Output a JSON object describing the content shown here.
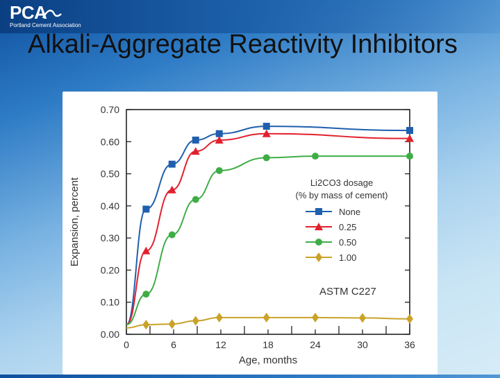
{
  "header": {
    "logo_text": "PCA",
    "logo_subtitle": "Portland Cement Association"
  },
  "slide": {
    "title": "Alkali-Aggregate Reactivity Inhibitors"
  },
  "colors": {
    "series_none": "#1f5fad",
    "series_025": "#e2202d",
    "series_050": "#3fad46",
    "series_100": "#c9a229",
    "axis": "#222222"
  },
  "chart_data": {
    "type": "line",
    "title": "",
    "xlabel": "Age, months",
    "ylabel": "Expansion, percent",
    "xlim": [
      0,
      36
    ],
    "ylim": [
      0,
      0.7
    ],
    "x_ticks": [
      0,
      6,
      12,
      18,
      24,
      30,
      36
    ],
    "x_tick_labels": [
      "0",
      "6",
      "12",
      "18",
      "24",
      "30",
      "36"
    ],
    "y_ticks": [
      0,
      0.1,
      0.2,
      0.3,
      0.4,
      0.5,
      0.6,
      0.7
    ],
    "y_tick_labels": [
      "0.00",
      "0.10",
      "0.20",
      "0.30",
      "0.40",
      "0.50",
      "0.60",
      "0.70"
    ],
    "legend_title_line1": "Li2CO3 dosage",
    "legend_title_line2": "(% by mass of cement)",
    "legend_position": "right",
    "annotation": "ASTM C227",
    "series": [
      {
        "name": "None",
        "color": "#1f5fad",
        "marker": "square",
        "x": [
          0,
          2.5,
          5.8,
          8.8,
          11.8,
          17.8,
          36
        ],
        "y": [
          0.03,
          0.39,
          0.53,
          0.605,
          0.625,
          0.648,
          0.635
        ]
      },
      {
        "name": "0.25",
        "color": "#e2202d",
        "marker": "triangle",
        "x": [
          0,
          2.5,
          5.8,
          8.8,
          11.8,
          17.8,
          36
        ],
        "y": [
          0.03,
          0.26,
          0.45,
          0.57,
          0.605,
          0.625,
          0.61
        ]
      },
      {
        "name": "0.50",
        "color": "#3fad46",
        "marker": "circle",
        "x": [
          0,
          2.5,
          5.8,
          8.8,
          11.8,
          17.8,
          24,
          36
        ],
        "y": [
          0.03,
          0.125,
          0.31,
          0.42,
          0.51,
          0.55,
          0.555,
          0.555
        ]
      },
      {
        "name": "1.00",
        "color": "#c9a229",
        "marker": "diamond",
        "x": [
          0,
          2.5,
          5.8,
          8.8,
          11.8,
          17.8,
          24,
          30,
          36
        ],
        "y": [
          0.02,
          0.03,
          0.032,
          0.042,
          0.052,
          0.052,
          0.052,
          0.051,
          0.048
        ]
      }
    ]
  }
}
